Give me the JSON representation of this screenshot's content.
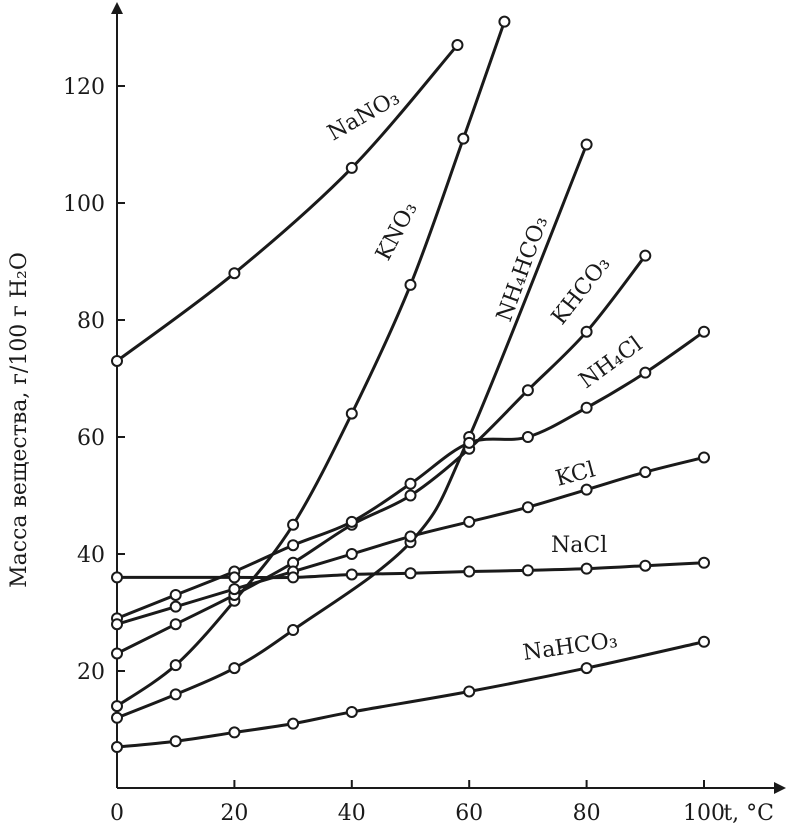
{
  "chart_data": {
    "type": "line",
    "title": "",
    "xlabel": "t, °C",
    "ylabel": "Масса вещества, г/100 г H₂O",
    "xlim": [
      0,
      100
    ],
    "ylim": [
      0,
      130
    ],
    "x_ticks": [
      "0",
      "20",
      "40",
      "60",
      "80",
      "100"
    ],
    "y_ticks": [
      "20",
      "40",
      "60",
      "80",
      "100",
      "120"
    ],
    "grid": false,
    "series": [
      {
        "name": "NaNO₃",
        "x": [
          0,
          20,
          40,
          58
        ],
        "y": [
          73,
          88,
          106,
          127
        ]
      },
      {
        "name": "KNO₃",
        "x": [
          0,
          10,
          20,
          30,
          40,
          50,
          59,
          66
        ],
        "y": [
          14,
          21,
          32,
          45,
          64,
          86,
          111,
          131
        ]
      },
      {
        "name": "NH₄HCO₃",
        "x": [
          0,
          10,
          20,
          30,
          50,
          60,
          80
        ],
        "y": [
          12,
          16,
          20.5,
          27,
          42,
          60,
          110
        ]
      },
      {
        "name": "KHCO₃",
        "x": [
          0,
          10,
          20,
          30,
          40,
          50,
          60,
          70,
          80,
          90
        ],
        "y": [
          23,
          28,
          33,
          38.5,
          45,
          50,
          58,
          68,
          78,
          91
        ]
      },
      {
        "name": "NH₄Cl",
        "x": [
          0,
          10,
          20,
          30,
          40,
          50,
          60,
          70,
          80,
          90,
          100
        ],
        "y": [
          29,
          33,
          37,
          41.5,
          45.5,
          52,
          59,
          60,
          65,
          71,
          78
        ]
      },
      {
        "name": "KCl",
        "x": [
          0,
          10,
          20,
          30,
          40,
          50,
          60,
          70,
          80,
          90,
          100
        ],
        "y": [
          28,
          31,
          34,
          37,
          40,
          43,
          45.5,
          48,
          51,
          54,
          56.5
        ]
      },
      {
        "name": "NaCl",
        "x": [
          0,
          20,
          30,
          40,
          50,
          60,
          70,
          80,
          90,
          100
        ],
        "y": [
          36,
          36,
          36,
          36.5,
          36.7,
          37,
          37.2,
          37.5,
          38,
          38.5
        ]
      },
      {
        "name": "NaHCO₃",
        "x": [
          0,
          10,
          20,
          30,
          40,
          60,
          80,
          100
        ],
        "y": [
          7,
          8,
          9.5,
          11,
          13,
          16.5,
          20.5,
          25
        ]
      }
    ]
  }
}
